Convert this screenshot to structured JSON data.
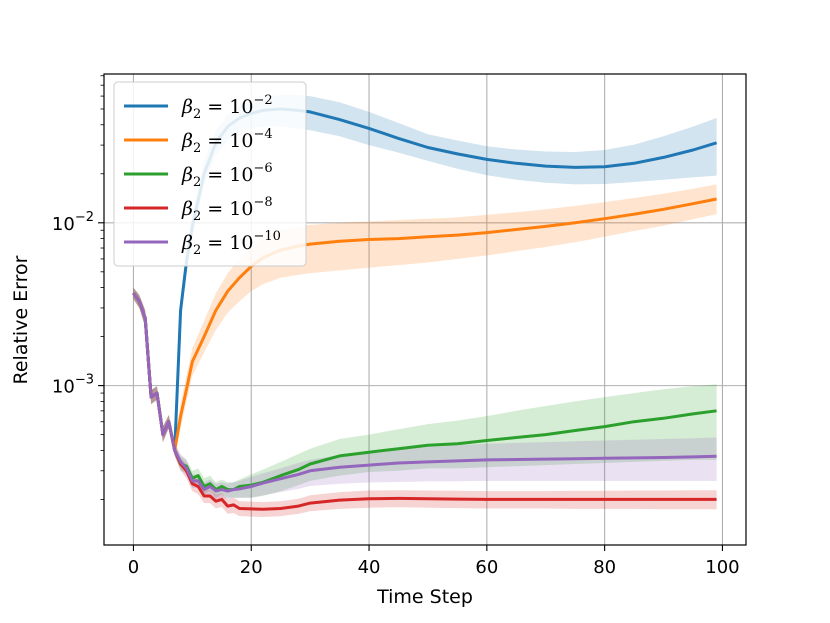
{
  "chart_data": {
    "type": "line",
    "xlabel": "Time Step",
    "ylabel": "Relative Error",
    "xlim": [
      -5,
      104
    ],
    "ylim": [
      0.000105,
      0.082
    ],
    "yscale": "log",
    "grid": true,
    "legend_position": "top-left",
    "x_ticks": [
      0,
      20,
      40,
      60,
      80,
      100
    ],
    "x_tick_labels": [
      "0",
      "20",
      "40",
      "60",
      "80",
      "100"
    ],
    "y_ticks": [
      0.001,
      0.01
    ],
    "y_tick_labels": [
      {
        "base": "10",
        "exp": "−3"
      },
      {
        "base": "10",
        "exp": "−2"
      }
    ],
    "series": [
      {
        "name": "β₂ = 10⁻²",
        "legend_sym": "β",
        "legend_sub": "2",
        "legend_eq": " = 10",
        "legend_exp": "−2",
        "color": "#1f77b4",
        "x": [
          0,
          1,
          2,
          3,
          4,
          5,
          6,
          7,
          8,
          9,
          10,
          12,
          14,
          16,
          18,
          20,
          22,
          25,
          28,
          30,
          35,
          40,
          45,
          50,
          55,
          60,
          65,
          70,
          75,
          80,
          85,
          90,
          95,
          99
        ],
        "y": [
          0.0037,
          0.0033,
          0.0026,
          0.00085,
          0.0009,
          0.0005,
          0.0006,
          0.0004,
          0.0029,
          0.0058,
          0.0095,
          0.02,
          0.031,
          0.039,
          0.044,
          0.047,
          0.049,
          0.05,
          0.049,
          0.048,
          0.043,
          0.038,
          0.033,
          0.029,
          0.0265,
          0.0245,
          0.0232,
          0.0223,
          0.0219,
          0.0221,
          0.0232,
          0.0252,
          0.028,
          0.031
        ],
        "lower": [
          0.0034,
          0.003,
          0.0023,
          0.00077,
          0.00082,
          0.00045,
          0.00055,
          0.00037,
          0.0025,
          0.0049,
          0.008,
          0.017,
          0.026,
          0.032,
          0.036,
          0.038,
          0.039,
          0.039,
          0.038,
          0.037,
          0.034,
          0.03,
          0.027,
          0.024,
          0.0215,
          0.0196,
          0.0184,
          0.0176,
          0.0172,
          0.0173,
          0.0178,
          0.0184,
          0.019,
          0.0195
        ],
        "upper": [
          0.004,
          0.0036,
          0.0029,
          0.00094,
          0.00099,
          0.00056,
          0.00066,
          0.00044,
          0.0034,
          0.0068,
          0.011,
          0.024,
          0.037,
          0.046,
          0.052,
          0.056,
          0.059,
          0.061,
          0.061,
          0.06,
          0.055,
          0.048,
          0.041,
          0.035,
          0.032,
          0.0295,
          0.0282,
          0.0274,
          0.0272,
          0.028,
          0.0302,
          0.034,
          0.039,
          0.044
        ]
      },
      {
        "name": "β₂ = 10⁻⁴",
        "legend_sym": "β",
        "legend_sub": "2",
        "legend_eq": " = 10",
        "legend_exp": "−4",
        "color": "#ff7f0e",
        "x": [
          0,
          1,
          2,
          3,
          4,
          5,
          6,
          7,
          8,
          9,
          10,
          12,
          14,
          16,
          18,
          20,
          22,
          25,
          28,
          30,
          35,
          40,
          45,
          50,
          55,
          60,
          65,
          70,
          75,
          80,
          85,
          90,
          95,
          99
        ],
        "y": [
          0.0037,
          0.0033,
          0.0026,
          0.00085,
          0.0009,
          0.0005,
          0.0006,
          0.0004,
          0.00065,
          0.00095,
          0.0014,
          0.002,
          0.0029,
          0.0038,
          0.0046,
          0.0054,
          0.0061,
          0.0068,
          0.0072,
          0.0074,
          0.0077,
          0.0079,
          0.008,
          0.0082,
          0.0084,
          0.0087,
          0.0091,
          0.0095,
          0.01,
          0.0106,
          0.0113,
          0.0121,
          0.0131,
          0.014
        ],
        "lower": [
          0.0034,
          0.003,
          0.0023,
          0.00077,
          0.00082,
          0.00045,
          0.00055,
          0.00037,
          0.00055,
          0.0008,
          0.00115,
          0.0016,
          0.0022,
          0.0028,
          0.0033,
          0.0038,
          0.0042,
          0.0046,
          0.0048,
          0.0049,
          0.0051,
          0.0053,
          0.0055,
          0.0057,
          0.006,
          0.0063,
          0.0067,
          0.0071,
          0.0076,
          0.0082,
          0.0089,
          0.0096,
          0.0105,
          0.0113
        ],
        "upper": [
          0.004,
          0.0036,
          0.0029,
          0.00094,
          0.00099,
          0.00056,
          0.00066,
          0.00044,
          0.00078,
          0.00115,
          0.0017,
          0.0025,
          0.0037,
          0.0049,
          0.006,
          0.0071,
          0.0081,
          0.009,
          0.0095,
          0.0097,
          0.01,
          0.0102,
          0.0104,
          0.0106,
          0.0108,
          0.0112,
          0.0116,
          0.0121,
          0.0127,
          0.0134,
          0.0142,
          0.0151,
          0.0162,
          0.0172
        ]
      },
      {
        "name": "β₂ = 10⁻⁶",
        "legend_sym": "β",
        "legend_sub": "2",
        "legend_eq": " = 10",
        "legend_exp": "−6",
        "color": "#2ca02c",
        "x": [
          0,
          1,
          2,
          3,
          4,
          5,
          6,
          7,
          8,
          9,
          10,
          11,
          12,
          13,
          14,
          15,
          16,
          17,
          18,
          20,
          22,
          25,
          28,
          30,
          35,
          40,
          45,
          50,
          55,
          60,
          65,
          70,
          75,
          80,
          85,
          90,
          95,
          99
        ],
        "y": [
          0.0037,
          0.0033,
          0.0026,
          0.00085,
          0.0009,
          0.0005,
          0.0006,
          0.0004,
          0.00033,
          0.00032,
          0.00027,
          0.00028,
          0.00024,
          0.00025,
          0.00023,
          0.00024,
          0.00023,
          0.00023,
          0.00024,
          0.000245,
          0.000255,
          0.00028,
          0.000305,
          0.00033,
          0.00037,
          0.00039,
          0.00041,
          0.00043,
          0.00044,
          0.00046,
          0.00048,
          0.0005,
          0.00053,
          0.00056,
          0.0006,
          0.00063,
          0.00067,
          0.0007
        ],
        "lower": [
          0.0034,
          0.003,
          0.0023,
          0.00077,
          0.00082,
          0.00045,
          0.00055,
          0.00037,
          0.0003,
          0.00029,
          0.00024,
          0.00025,
          0.000215,
          0.000225,
          0.000205,
          0.000215,
          0.000205,
          0.000205,
          0.000205,
          0.000205,
          0.00021,
          0.000225,
          0.000245,
          0.00026,
          0.00028,
          0.000295,
          0.0003,
          0.00031,
          0.00031,
          0.000315,
          0.00032,
          0.000325,
          0.00033,
          0.000335,
          0.00034,
          0.000345,
          0.00035,
          0.00035
        ],
        "upper": [
          0.004,
          0.0036,
          0.0029,
          0.00094,
          0.00099,
          0.00056,
          0.00066,
          0.00044,
          0.00037,
          0.00035,
          0.0003,
          0.00031,
          0.00027,
          0.00028,
          0.000255,
          0.000265,
          0.000255,
          0.000255,
          0.000265,
          0.000285,
          0.000305,
          0.00034,
          0.00038,
          0.00041,
          0.00047,
          0.0005,
          0.00054,
          0.00058,
          0.00061,
          0.00065,
          0.0007,
          0.00075,
          0.0008,
          0.00085,
          0.0009,
          0.00095,
          0.00099,
          0.00102
        ]
      },
      {
        "name": "β₂ = 10⁻⁸",
        "legend_sym": "β",
        "legend_sub": "2",
        "legend_eq": " = 10",
        "legend_exp": "−8",
        "color": "#d62728",
        "x": [
          0,
          1,
          2,
          3,
          4,
          5,
          6,
          7,
          8,
          9,
          10,
          11,
          12,
          13,
          14,
          15,
          16,
          17,
          18,
          20,
          22,
          25,
          28,
          30,
          35,
          40,
          45,
          50,
          55,
          60,
          65,
          70,
          75,
          80,
          85,
          90,
          95,
          99
        ],
        "y": [
          0.0037,
          0.0033,
          0.0026,
          0.00085,
          0.0009,
          0.0005,
          0.0006,
          0.0004,
          0.00033,
          0.0003,
          0.00025,
          0.00024,
          0.00021,
          0.00021,
          0.000195,
          0.0002,
          0.000182,
          0.000185,
          0.000176,
          0.000175,
          0.000174,
          0.000176,
          0.000182,
          0.00019,
          0.000198,
          0.000202,
          0.000203,
          0.000202,
          0.000201,
          0.0002,
          0.0002,
          0.0002,
          0.0002,
          0.0002,
          0.0002,
          0.0002,
          0.0002,
          0.0002
        ],
        "lower": [
          0.0034,
          0.003,
          0.0023,
          0.00077,
          0.00082,
          0.00045,
          0.00055,
          0.00037,
          0.0003,
          0.00027,
          0.000225,
          0.000215,
          0.00019,
          0.00019,
          0.000176,
          0.00018,
          0.000163,
          0.000165,
          0.000158,
          0.000157,
          0.000156,
          0.000158,
          0.000163,
          0.000169,
          0.000175,
          0.000178,
          0.000179,
          0.000178,
          0.000177,
          0.000176,
          0.000176,
          0.000176,
          0.000175,
          0.000175,
          0.000175,
          0.000174,
          0.000174,
          0.000174
        ],
        "upper": [
          0.004,
          0.0036,
          0.0029,
          0.00094,
          0.00099,
          0.00056,
          0.00066,
          0.00044,
          0.00036,
          0.00033,
          0.000275,
          0.000265,
          0.00023,
          0.00023,
          0.000215,
          0.00022,
          0.0002,
          0.000205,
          0.000195,
          0.000194,
          0.000193,
          0.000195,
          0.000202,
          0.000212,
          0.000222,
          0.000227,
          0.000228,
          0.000227,
          0.000226,
          0.000225,
          0.000225,
          0.000225,
          0.000226,
          0.000226,
          0.000227,
          0.000227,
          0.000228,
          0.000228
        ]
      },
      {
        "name": "β₂ = 10⁻¹⁰",
        "legend_sym": "β",
        "legend_sub": "2",
        "legend_eq": " = 10",
        "legend_exp": "−10",
        "color": "#9467bd",
        "x": [
          0,
          1,
          2,
          3,
          4,
          5,
          6,
          7,
          8,
          9,
          10,
          11,
          12,
          13,
          14,
          15,
          16,
          17,
          18,
          20,
          22,
          25,
          28,
          30,
          35,
          40,
          45,
          50,
          55,
          60,
          65,
          70,
          75,
          80,
          85,
          90,
          95,
          99
        ],
        "y": [
          0.0037,
          0.0033,
          0.0026,
          0.00085,
          0.0009,
          0.0005,
          0.0006,
          0.0004,
          0.00034,
          0.00031,
          0.00026,
          0.00026,
          0.00023,
          0.00024,
          0.000225,
          0.00023,
          0.000225,
          0.00023,
          0.000232,
          0.00024,
          0.000252,
          0.000268,
          0.000285,
          0.0003,
          0.000315,
          0.000325,
          0.000335,
          0.00034,
          0.000345,
          0.00035,
          0.000352,
          0.000354,
          0.000356,
          0.000358,
          0.00036,
          0.000362,
          0.000365,
          0.000368
        ],
        "lower": [
          0.0034,
          0.003,
          0.0023,
          0.00077,
          0.00082,
          0.00045,
          0.00055,
          0.00037,
          0.00031,
          0.00028,
          0.000235,
          0.000235,
          0.000205,
          0.000215,
          0.0002,
          0.000205,
          0.0002,
          0.000205,
          0.000205,
          0.000205,
          0.000212,
          0.000222,
          0.000232,
          0.000242,
          0.00025,
          0.000254,
          0.000256,
          0.000258,
          0.000259,
          0.00026,
          0.00026,
          0.00026,
          0.00026,
          0.00026,
          0.00026,
          0.00026,
          0.00026,
          0.00026
        ],
        "upper": [
          0.004,
          0.0036,
          0.0029,
          0.00094,
          0.00099,
          0.00056,
          0.00066,
          0.00044,
          0.00038,
          0.00035,
          0.000285,
          0.000285,
          0.000255,
          0.000265,
          0.00025,
          0.000255,
          0.00025,
          0.000255,
          0.00026,
          0.000275,
          0.00029,
          0.00031,
          0.000335,
          0.00035,
          0.000375,
          0.000395,
          0.00041,
          0.00042,
          0.00043,
          0.00044,
          0.000445,
          0.00045,
          0.000455,
          0.00046,
          0.000465,
          0.00047,
          0.000475,
          0.00048
        ]
      }
    ]
  }
}
